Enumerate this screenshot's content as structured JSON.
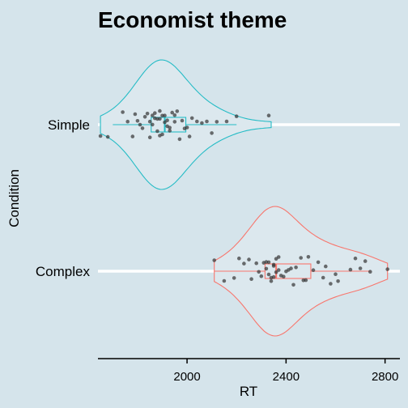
{
  "chart_data": {
    "type": "violin",
    "title": "Economist theme",
    "xlabel": "RT",
    "ylabel": "Condition",
    "x_ticks": [
      2000,
      2400,
      2800
    ],
    "x_range": [
      1640,
      2860
    ],
    "categories": [
      "Simple",
      "Complex"
    ],
    "series": [
      {
        "name": "Simple",
        "color": "#26bcc6",
        "box": {
          "q1": 1855,
          "median": 1910,
          "q3": 1995,
          "whisker_low": 1700,
          "whisker_high": 2200
        },
        "violin_range": [
          1650,
          2340
        ],
        "points": [
          1650,
          1680,
          1740,
          1760,
          1780,
          1790,
          1800,
          1810,
          1820,
          1830,
          1840,
          1850,
          1850,
          1860,
          1860,
          1870,
          1870,
          1880,
          1880,
          1890,
          1890,
          1890,
          1900,
          1900,
          1910,
          1910,
          1920,
          1920,
          1930,
          1930,
          1940,
          1950,
          1950,
          1960,
          1970,
          1980,
          1990,
          2000,
          2010,
          2020,
          2040,
          2060,
          2080,
          2100,
          2120,
          2160,
          2200,
          2330
        ]
      },
      {
        "name": "Complex",
        "color": "#f8766d",
        "box": {
          "q1": 2315,
          "median": 2360,
          "q3": 2500,
          "whisker_low": 2110,
          "whisker_high": 2740
        },
        "violin_range": [
          2110,
          2810
        ],
        "points": [
          2110,
          2150,
          2190,
          2210,
          2230,
          2250,
          2260,
          2280,
          2290,
          2300,
          2310,
          2320,
          2320,
          2330,
          2330,
          2340,
          2340,
          2350,
          2350,
          2350,
          2360,
          2360,
          2370,
          2370,
          2380,
          2390,
          2400,
          2410,
          2420,
          2430,
          2440,
          2460,
          2470,
          2480,
          2490,
          2510,
          2530,
          2550,
          2560,
          2580,
          2600,
          2610,
          2660,
          2680,
          2700,
          2720,
          2740,
          2810
        ]
      }
    ]
  }
}
